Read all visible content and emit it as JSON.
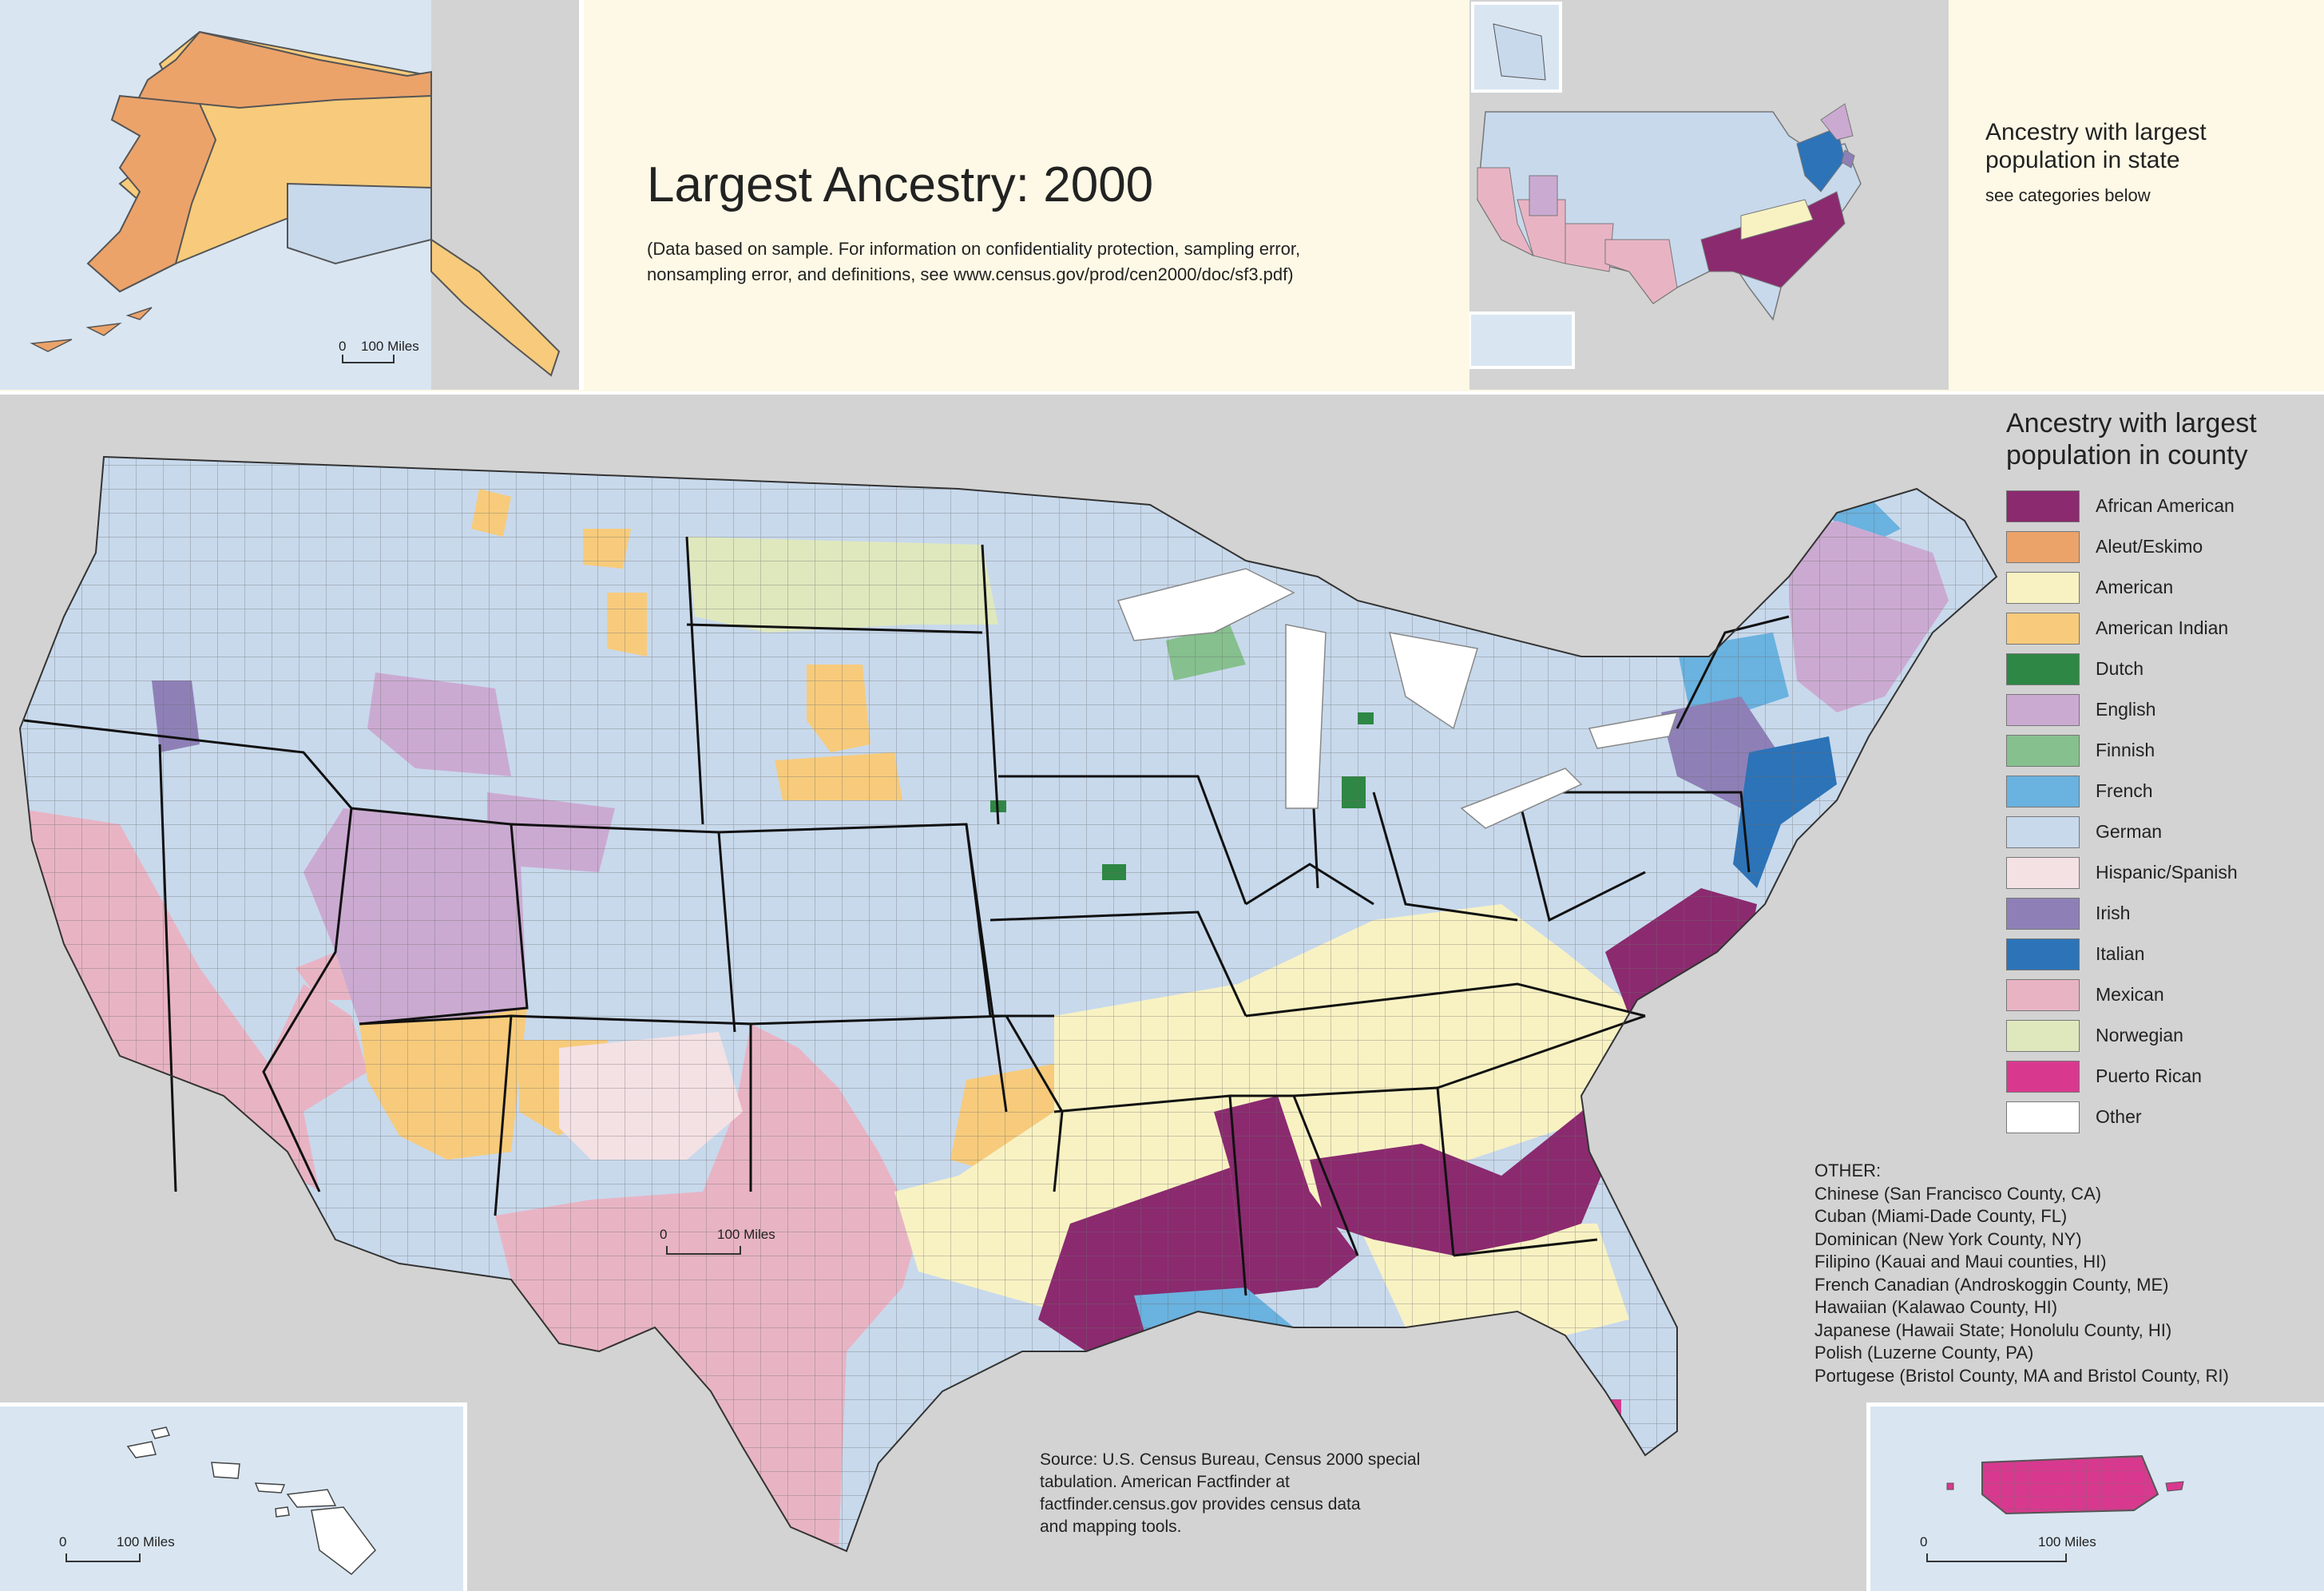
{
  "title": "Largest Ancestry: 2000",
  "subtitle": "(Data based on sample. For information on confidentiality protection, sampling error,\nnonsampling error, and definitions, see www.census.gov/prod/cen2000/doc/sf3.pdf)",
  "inset_legend": {
    "title": "Ancestry with largest\npopulation in state",
    "subtitle": "see categories below"
  },
  "legend": {
    "title": "Ancestry with largest\npopulation in county",
    "items": [
      {
        "label": "African American",
        "color": "#8b2a6f"
      },
      {
        "label": "Aleut/Eskimo",
        "color": "#eba36a"
      },
      {
        "label": "American",
        "color": "#f8f2c3"
      },
      {
        "label": "American Indian",
        "color": "#f7cb7b"
      },
      {
        "label": "Dutch",
        "color": "#2e8744"
      },
      {
        "label": "English",
        "color": "#cbaad2"
      },
      {
        "label": "Finnish",
        "color": "#86c08e"
      },
      {
        "label": "French",
        "color": "#6ab2df"
      },
      {
        "label": "German",
        "color": "#c8d9ec"
      },
      {
        "label": "Hispanic/Spanish",
        "color": "#f4e1e4"
      },
      {
        "label": "Irish",
        "color": "#8e80b7"
      },
      {
        "label": "Italian",
        "color": "#2c73b8"
      },
      {
        "label": "Mexican",
        "color": "#e8b4c4"
      },
      {
        "label": "Norwegian",
        "color": "#dfe8bd"
      },
      {
        "label": "Puerto Rican",
        "color": "#d8398f"
      },
      {
        "label": "Other",
        "color": "#ffffff"
      }
    ]
  },
  "other": {
    "heading": "OTHER:",
    "items": [
      "Chinese (San Francisco County, CA)",
      "Cuban (Miami-Dade County, FL)",
      "Dominican (New York County, NY)",
      "Filipino (Kauai and Maui counties, HI)",
      "French Canadian (Androskoggin County, ME)",
      "Hawaiian (Kalawao County, HI)",
      "Japanese (Hawaii State; Honolulu County, HI)",
      "Polish (Luzerne County, PA)",
      "Portugese (Bristol County, MA and Bristol County, RI)"
    ]
  },
  "source": "Source: U.S. Census Bureau, Census 2000 special\ntabulation. American Factfinder at\nfactfinder.census.gov provides census data\nand mapping tools.",
  "scalebars": {
    "alaska": {
      "zero": "0",
      "label": "100 Miles"
    },
    "conus": {
      "zero": "0",
      "label": "100 Miles"
    },
    "hawaii": {
      "zero": "0",
      "label": "100 Miles"
    },
    "puerto_rico": {
      "zero": "0",
      "label": "100 Miles"
    }
  }
}
